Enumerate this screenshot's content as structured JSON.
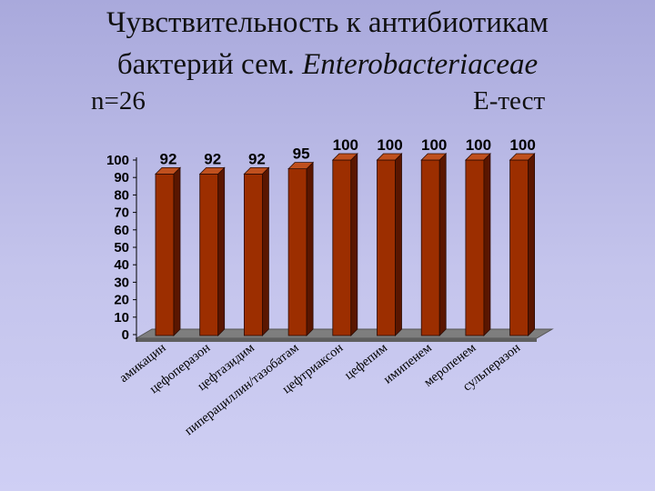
{
  "slide": {
    "title_line1": "Чувствительность к антибиотикам",
    "title_line2_prefix": "бактерий сем. ",
    "title_line2_italic": "Enterobacteriaceae",
    "sample_size": "n=26",
    "method": "Е-тест"
  },
  "chart_data": {
    "type": "bar",
    "categories": [
      "амикацин",
      "цефоперазон",
      "цефтазидим",
      "пиперациллин/тазобатам",
      "цефтриаксон",
      "цефепим",
      "имипенем",
      "меропенем",
      "сульперазон"
    ],
    "values": [
      92,
      92,
      92,
      95,
      100,
      100,
      100,
      100,
      100
    ],
    "data_labels": [
      "92",
      "92",
      "92",
      "95",
      "100",
      "100",
      "100",
      "100",
      "100"
    ],
    "ylim": [
      0,
      100
    ],
    "yticks": [
      "0",
      "10",
      "20",
      "30",
      "40",
      "50",
      "60",
      "70",
      "80",
      "90",
      "100"
    ],
    "grid": false,
    "colors": {
      "bar_front": "#9c2e00",
      "bar_side": "#5a1600",
      "bar_top": "#c0501e",
      "floor": "#7e7e7e",
      "floor_edge": "#555555"
    }
  }
}
